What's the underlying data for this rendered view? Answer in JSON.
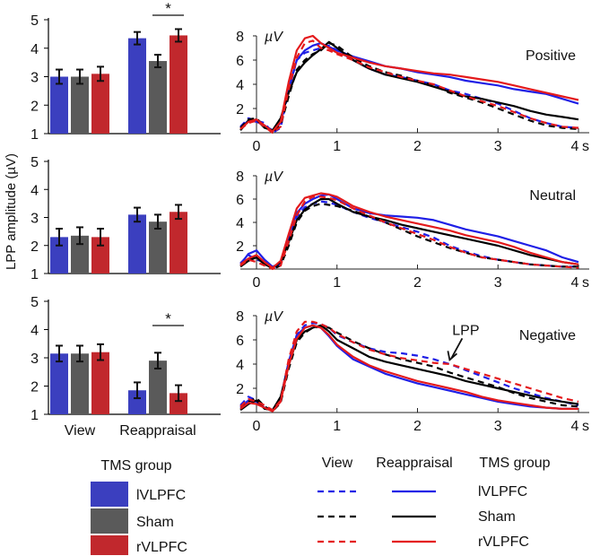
{
  "colors": {
    "lvlpfc": "#3b3fbf",
    "sham": "#5a5a5a",
    "rvlpfc": "#c1282d",
    "axis": "#000000",
    "line_lvlpfc": "#1f1fe6",
    "line_sham": "#000000",
    "line_rvlpfc": "#e41a1c"
  },
  "ylabel": "LPP amplitude (µV)",
  "bar_categories": [
    "View",
    "Reappraisal"
  ],
  "tms_legend": {
    "title": "TMS group",
    "items": [
      {
        "label": "lVLPFC",
        "key": "lvlpfc"
      },
      {
        "label": "Sham",
        "key": "sham"
      },
      {
        "label": "rVLPFC",
        "key": "rvlpfc"
      }
    ]
  },
  "line_legend": {
    "col_view": "View",
    "col_reappraisal": "Reappraisal",
    "col_group": "TMS group",
    "items": [
      {
        "label": "lVLPFC",
        "key": "lvlpfc"
      },
      {
        "label": "Sham",
        "key": "sham"
      },
      {
        "label": "rVLPFC",
        "key": "rvlpfc"
      }
    ]
  },
  "chart_data": [
    {
      "type": "bar",
      "panel": "bar-positive",
      "ylim": [
        1,
        5
      ],
      "yticks": [
        "1",
        "2",
        "3",
        "4",
        "5"
      ],
      "categories": [
        "View",
        "Reappraisal"
      ],
      "series": [
        {
          "name": "lVLPFC",
          "values": [
            3.0,
            4.35
          ],
          "errors": [
            0.25,
            0.22
          ]
        },
        {
          "name": "Sham",
          "values": [
            3.0,
            3.55
          ],
          "errors": [
            0.25,
            0.22
          ]
        },
        {
          "name": "rVLPFC",
          "values": [
            3.1,
            4.45
          ],
          "errors": [
            0.25,
            0.22
          ]
        }
      ],
      "significance": {
        "category": "Reappraisal",
        "between": [
          "Sham",
          "rVLPFC"
        ],
        "label": "*"
      }
    },
    {
      "type": "bar",
      "panel": "bar-neutral",
      "ylim": [
        1,
        5
      ],
      "yticks": [
        "1",
        "2",
        "3",
        "4",
        "5"
      ],
      "categories": [
        "View",
        "Reappraisal"
      ],
      "series": [
        {
          "name": "lVLPFC",
          "values": [
            2.3,
            3.1
          ],
          "errors": [
            0.3,
            0.25
          ]
        },
        {
          "name": "Sham",
          "values": [
            2.35,
            2.85
          ],
          "errors": [
            0.3,
            0.25
          ]
        },
        {
          "name": "rVLPFC",
          "values": [
            2.3,
            3.2
          ],
          "errors": [
            0.3,
            0.25
          ]
        }
      ]
    },
    {
      "type": "bar",
      "panel": "bar-negative",
      "ylim": [
        1,
        5
      ],
      "yticks": [
        "1",
        "2",
        "3",
        "4",
        "5"
      ],
      "categories": [
        "View",
        "Reappraisal"
      ],
      "series": [
        {
          "name": "lVLPFC",
          "values": [
            3.15,
            1.85
          ],
          "errors": [
            0.28,
            0.28
          ]
        },
        {
          "name": "Sham",
          "values": [
            3.15,
            2.9
          ],
          "errors": [
            0.28,
            0.28
          ]
        },
        {
          "name": "rVLPFC",
          "values": [
            3.2,
            1.75
          ],
          "errors": [
            0.28,
            0.28
          ]
        }
      ],
      "significance": {
        "category": "Reappraisal",
        "between": [
          "Sham",
          "rVLPFC"
        ],
        "label": "*"
      }
    },
    {
      "type": "line",
      "panel": "erp-positive",
      "title": "Positive",
      "ylabel": "µV",
      "xunit": "s",
      "xlim": [
        -0.2,
        4
      ],
      "ylim": [
        0,
        8
      ],
      "xticks": [
        "0",
        "1",
        "2",
        "3",
        "4"
      ],
      "yticks": [
        "2",
        "4",
        "6",
        "8"
      ],
      "x": [
        -0.2,
        -0.1,
        0,
        0.1,
        0.2,
        0.3,
        0.4,
        0.5,
        0.6,
        0.7,
        0.8,
        0.9,
        1.0,
        1.2,
        1.4,
        1.6,
        1.8,
        2.0,
        2.2,
        2.4,
        2.6,
        2.8,
        3.0,
        3.2,
        3.4,
        3.6,
        3.8,
        4.0
      ],
      "series": [
        {
          "name": "lVLPFC View",
          "condition": "View",
          "group": "lvlpfc",
          "values": [
            0.5,
            1.2,
            1.0,
            0.8,
            0.0,
            0.4,
            3.5,
            6.0,
            6.6,
            6.8,
            7.0,
            7.2,
            6.8,
            6.0,
            5.3,
            4.8,
            4.6,
            4.3,
            4.0,
            3.5,
            3.2,
            2.8,
            2.4,
            1.8,
            1.2,
            0.8,
            0.5,
            0.4
          ]
        },
        {
          "name": "lVLPFC Reappraisal",
          "condition": "Reappraisal",
          "group": "lvlpfc",
          "values": [
            0.4,
            1.0,
            0.9,
            0.6,
            0.2,
            0.8,
            3.6,
            6.0,
            6.8,
            7.2,
            7.4,
            7.1,
            6.8,
            6.3,
            5.9,
            5.5,
            5.3,
            5.0,
            4.8,
            4.6,
            4.3,
            4.1,
            3.9,
            3.6,
            3.4,
            3.2,
            2.8,
            2.4
          ]
        },
        {
          "name": "Sham View",
          "condition": "View",
          "group": "sham",
          "values": [
            0.4,
            1.1,
            1.2,
            0.5,
            0.1,
            0.6,
            3.0,
            5.2,
            6.0,
            6.5,
            6.8,
            7.4,
            7.2,
            6.2,
            5.5,
            5.0,
            4.7,
            4.3,
            3.9,
            3.3,
            2.9,
            2.5,
            2.0,
            1.5,
            1.0,
            0.6,
            0.4,
            0.3
          ]
        },
        {
          "name": "Sham Reappraisal",
          "condition": "Reappraisal",
          "group": "sham",
          "values": [
            0.2,
            1.0,
            1.1,
            0.4,
            0.2,
            1.2,
            3.3,
            5.0,
            5.8,
            6.4,
            6.9,
            7.5,
            7.0,
            6.0,
            5.3,
            4.8,
            4.5,
            4.2,
            3.8,
            3.4,
            3.0,
            2.8,
            2.5,
            2.2,
            1.8,
            1.5,
            1.3,
            1.1
          ]
        },
        {
          "name": "rVLPFC View",
          "condition": "View",
          "group": "rvlpfc",
          "values": [
            0.3,
            0.8,
            1.0,
            0.5,
            0.0,
            0.5,
            3.6,
            6.2,
            7.4,
            7.6,
            7.0,
            6.8,
            6.5,
            6.0,
            5.4,
            5.0,
            4.6,
            4.3,
            4.0,
            3.5,
            3.0,
            2.6,
            2.2,
            1.7,
            1.2,
            0.8,
            0.5,
            0.4
          ]
        },
        {
          "name": "rVLPFC Reappraisal",
          "condition": "Reappraisal",
          "group": "rvlpfc",
          "values": [
            0.3,
            0.9,
            1.1,
            0.6,
            0.1,
            0.9,
            4.2,
            6.8,
            7.8,
            8.0,
            7.4,
            7.0,
            6.6,
            6.2,
            5.8,
            5.5,
            5.3,
            5.1,
            4.9,
            4.8,
            4.6,
            4.4,
            4.2,
            3.9,
            3.6,
            3.3,
            3.0,
            2.7
          ]
        }
      ]
    },
    {
      "type": "line",
      "panel": "erp-neutral",
      "title": "Neutral",
      "ylabel": "µV",
      "xunit": "s",
      "xlim": [
        -0.2,
        4
      ],
      "ylim": [
        0,
        8
      ],
      "xticks": [
        "0",
        "1",
        "2",
        "3",
        "4"
      ],
      "yticks": [
        "2",
        "4",
        "6",
        "8"
      ],
      "x": [
        -0.2,
        -0.1,
        0,
        0.1,
        0.2,
        0.3,
        0.4,
        0.5,
        0.6,
        0.7,
        0.8,
        0.9,
        1.0,
        1.2,
        1.4,
        1.6,
        1.8,
        2.0,
        2.2,
        2.4,
        2.6,
        2.8,
        3.0,
        3.2,
        3.4,
        3.6,
        3.8,
        4.0
      ],
      "series": [
        {
          "name": "lVLPFC View",
          "condition": "View",
          "group": "lvlpfc",
          "values": [
            0.5,
            1.2,
            0.8,
            0.6,
            0.0,
            0.4,
            2.5,
            4.5,
            5.3,
            5.6,
            5.8,
            5.7,
            5.5,
            4.9,
            4.4,
            4.0,
            3.6,
            3.2,
            2.7,
            2.0,
            1.5,
            1.1,
            0.8,
            0.6,
            0.4,
            0.3,
            0.2,
            0.2
          ]
        },
        {
          "name": "lVLPFC Reappraisal",
          "condition": "Reappraisal",
          "group": "lvlpfc",
          "values": [
            0.4,
            1.3,
            1.6,
            0.8,
            0.2,
            0.5,
            2.8,
            4.8,
            5.6,
            6.0,
            6.3,
            6.4,
            6.0,
            5.2,
            4.8,
            4.6,
            4.5,
            4.4,
            4.2,
            3.8,
            3.4,
            3.1,
            2.8,
            2.4,
            2.0,
            1.6,
            1.0,
            0.6
          ]
        },
        {
          "name": "Sham View",
          "condition": "View",
          "group": "sham",
          "values": [
            0.3,
            0.8,
            1.1,
            0.5,
            0.0,
            0.3,
            2.0,
            4.0,
            5.0,
            5.4,
            5.6,
            5.5,
            5.4,
            5.0,
            4.5,
            4.0,
            3.4,
            2.8,
            2.3,
            1.8,
            1.4,
            1.0,
            0.8,
            0.6,
            0.4,
            0.3,
            0.2,
            0.2
          ]
        },
        {
          "name": "Sham Reappraisal",
          "condition": "Reappraisal",
          "group": "sham",
          "values": [
            0.2,
            0.7,
            1.0,
            0.4,
            0.1,
            0.6,
            2.3,
            4.2,
            5.1,
            5.6,
            6.0,
            6.0,
            5.6,
            4.9,
            4.5,
            4.2,
            3.8,
            3.5,
            3.2,
            2.9,
            2.6,
            2.3,
            2.0,
            1.6,
            1.2,
            0.9,
            0.6,
            0.4
          ]
        },
        {
          "name": "rVLPFC View",
          "condition": "View",
          "group": "rvlpfc",
          "values": [
            0.3,
            0.8,
            0.6,
            0.3,
            0.0,
            0.3,
            2.4,
            4.6,
            5.8,
            6.2,
            6.2,
            6.1,
            5.9,
            5.2,
            4.6,
            4.0,
            3.5,
            3.0,
            2.5,
            1.9,
            1.4,
            1.0,
            0.8,
            0.6,
            0.4,
            0.3,
            0.2,
            0.1
          ]
        },
        {
          "name": "rVLPFC Reappraisal",
          "condition": "Reappraisal",
          "group": "rvlpfc",
          "values": [
            0.4,
            0.9,
            1.2,
            0.6,
            0.1,
            0.7,
            3.0,
            5.2,
            6.1,
            6.3,
            6.5,
            6.4,
            6.2,
            5.4,
            4.9,
            4.5,
            4.2,
            3.9,
            3.6,
            3.3,
            2.9,
            2.6,
            2.3,
            1.9,
            1.4,
            1.0,
            0.6,
            0.4
          ]
        }
      ]
    },
    {
      "type": "line",
      "panel": "erp-negative",
      "title": "Negative",
      "ylabel": "µV",
      "xunit": "s",
      "xlim": [
        -0.2,
        4
      ],
      "ylim": [
        0,
        8
      ],
      "xticks": [
        "0",
        "1",
        "2",
        "3",
        "4"
      ],
      "yticks": [
        "2",
        "4",
        "6",
        "8"
      ],
      "annotation": {
        "text": "LPP",
        "x": 2.4,
        "y": 4.2
      },
      "x": [
        -0.2,
        -0.1,
        0,
        0.1,
        0.2,
        0.3,
        0.4,
        0.5,
        0.6,
        0.7,
        0.8,
        0.9,
        1.0,
        1.2,
        1.4,
        1.6,
        1.8,
        2.0,
        2.2,
        2.4,
        2.6,
        2.8,
        3.0,
        3.2,
        3.4,
        3.6,
        3.8,
        4.0
      ],
      "series": [
        {
          "name": "lVLPFC View",
          "condition": "View",
          "group": "lvlpfc",
          "values": [
            0.6,
            1.3,
            1.0,
            0.5,
            0.1,
            1.0,
            4.0,
            6.4,
            7.2,
            7.4,
            7.3,
            7.0,
            6.4,
            5.8,
            5.3,
            5.0,
            4.9,
            4.7,
            4.4,
            4.0,
            3.5,
            3.0,
            2.5,
            2.0,
            1.6,
            1.2,
            0.9,
            0.6
          ]
        },
        {
          "name": "lVLPFC Reappraisal",
          "condition": "Reappraisal",
          "group": "lvlpfc",
          "values": [
            0.4,
            1.0,
            0.9,
            0.4,
            0.2,
            1.2,
            4.2,
            6.4,
            7.0,
            7.2,
            7.0,
            6.3,
            5.5,
            4.4,
            3.8,
            3.2,
            2.8,
            2.4,
            2.1,
            1.8,
            1.5,
            1.2,
            0.9,
            0.7,
            0.5,
            0.4,
            0.3,
            0.3
          ]
        },
        {
          "name": "Sham View",
          "condition": "View",
          "group": "sham",
          "values": [
            0.3,
            0.9,
            1.2,
            0.5,
            0.1,
            0.8,
            3.6,
            5.8,
            6.6,
            7.0,
            7.1,
            7.0,
            6.6,
            5.9,
            5.3,
            4.8,
            4.4,
            4.1,
            3.8,
            3.3,
            2.9,
            2.5,
            2.1,
            1.6,
            1.2,
            0.9,
            0.6,
            0.5
          ]
        },
        {
          "name": "Sham Reappraisal",
          "condition": "Reappraisal",
          "group": "sham",
          "values": [
            0.2,
            0.7,
            1.0,
            0.3,
            0.2,
            1.3,
            3.9,
            6.0,
            6.7,
            7.0,
            7.2,
            6.7,
            6.0,
            5.3,
            4.6,
            4.2,
            3.9,
            3.6,
            3.3,
            3.0,
            2.6,
            2.3,
            2.0,
            1.7,
            1.4,
            1.1,
            0.9,
            0.7
          ]
        },
        {
          "name": "rVLPFC View",
          "condition": "View",
          "group": "rvlpfc",
          "values": [
            0.5,
            1.1,
            0.9,
            0.6,
            0.2,
            1.0,
            4.4,
            6.7,
            7.5,
            7.5,
            7.3,
            7.0,
            6.5,
            5.8,
            5.2,
            4.8,
            4.5,
            4.3,
            4.1,
            4.0,
            3.6,
            3.2,
            2.8,
            2.4,
            2.0,
            1.6,
            1.2,
            0.9
          ]
        },
        {
          "name": "rVLPFC Reappraisal",
          "condition": "Reappraisal",
          "group": "rvlpfc",
          "values": [
            0.3,
            0.8,
            0.7,
            0.4,
            0.1,
            0.9,
            3.9,
            6.1,
            7.0,
            7.2,
            7.0,
            6.4,
            5.6,
            4.6,
            3.9,
            3.4,
            3.0,
            2.6,
            2.3,
            2.0,
            1.7,
            1.3,
            1.0,
            0.8,
            0.6,
            0.4,
            0.3,
            0.3
          ]
        }
      ]
    }
  ]
}
